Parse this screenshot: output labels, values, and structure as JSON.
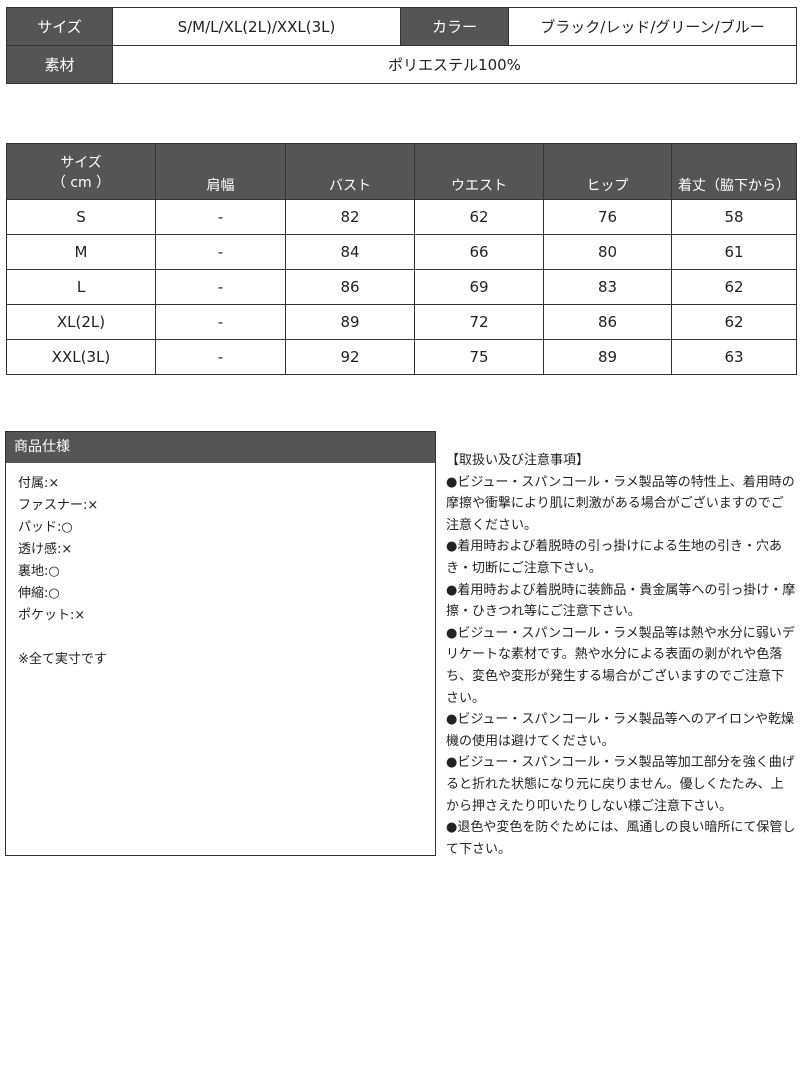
{
  "summary": {
    "size_label": "サイズ",
    "size_value": "S/M/L/XL(2L)/XXL(3L)",
    "color_label": "カラー",
    "color_value": "ブラック/レッド/グリーン/ブルー",
    "material_label": "素材",
    "material_value": "ポリエステル100%"
  },
  "size_table": {
    "headers": [
      "サイズ\n（ cm ）",
      "肩幅",
      "バスト",
      "ウエスト",
      "ヒップ",
      "着丈（脇下から）"
    ],
    "rows": [
      [
        "S",
        "-",
        "82",
        "62",
        "76",
        "58"
      ],
      [
        "M",
        "-",
        "84",
        "66",
        "80",
        "61"
      ],
      [
        "L",
        "-",
        "86",
        "69",
        "83",
        "62"
      ],
      [
        "XL(2L)",
        "-",
        "89",
        "72",
        "86",
        "62"
      ],
      [
        "XXL(3L)",
        "-",
        "92",
        "75",
        "89",
        "63"
      ]
    ]
  },
  "spec": {
    "title": "商品仕様",
    "items": [
      "付属:×",
      "ファスナー:×",
      "パッド:○",
      "透け感:×",
      "裏地:○",
      "伸縮:○",
      "ポケット:×"
    ],
    "note": "※全て実寸です"
  },
  "notes": {
    "title": "【取扱い及び注意事項】",
    "items": [
      "●ビジュー・スパンコール・ラメ製品等の特性上、着用時の摩擦や衝撃により肌に刺激がある場合がございますのでご注意ください。",
      "●着用時および着脱時の引っ掛けによる生地の引き・穴あき・切断にご注意下さい。",
      "●着用時および着脱時に装飾品・貴金属等への引っ掛け・摩擦・ひきつれ等にご注意下さい。",
      "●ビジュー・スパンコール・ラメ製品等は熱や水分に弱いデリケートな素材です。熱や水分による表面の剥がれや色落ち、変色や変形が発生する場合がございますのでご注意下さい。",
      "●ビジュー・スパンコール・ラメ製品等へのアイロンや乾燥機の使用は避けてください。",
      "●ビジュー・スパンコール・ラメ製品等加工部分を強く曲げると折れた状態になり元に戻りません。優しくたたみ、上から押さえたり叩いたりしない様ご注意下さい。",
      "●退色や変色を防ぐためには、風通しの良い暗所にて保管して下さい。"
    ]
  }
}
